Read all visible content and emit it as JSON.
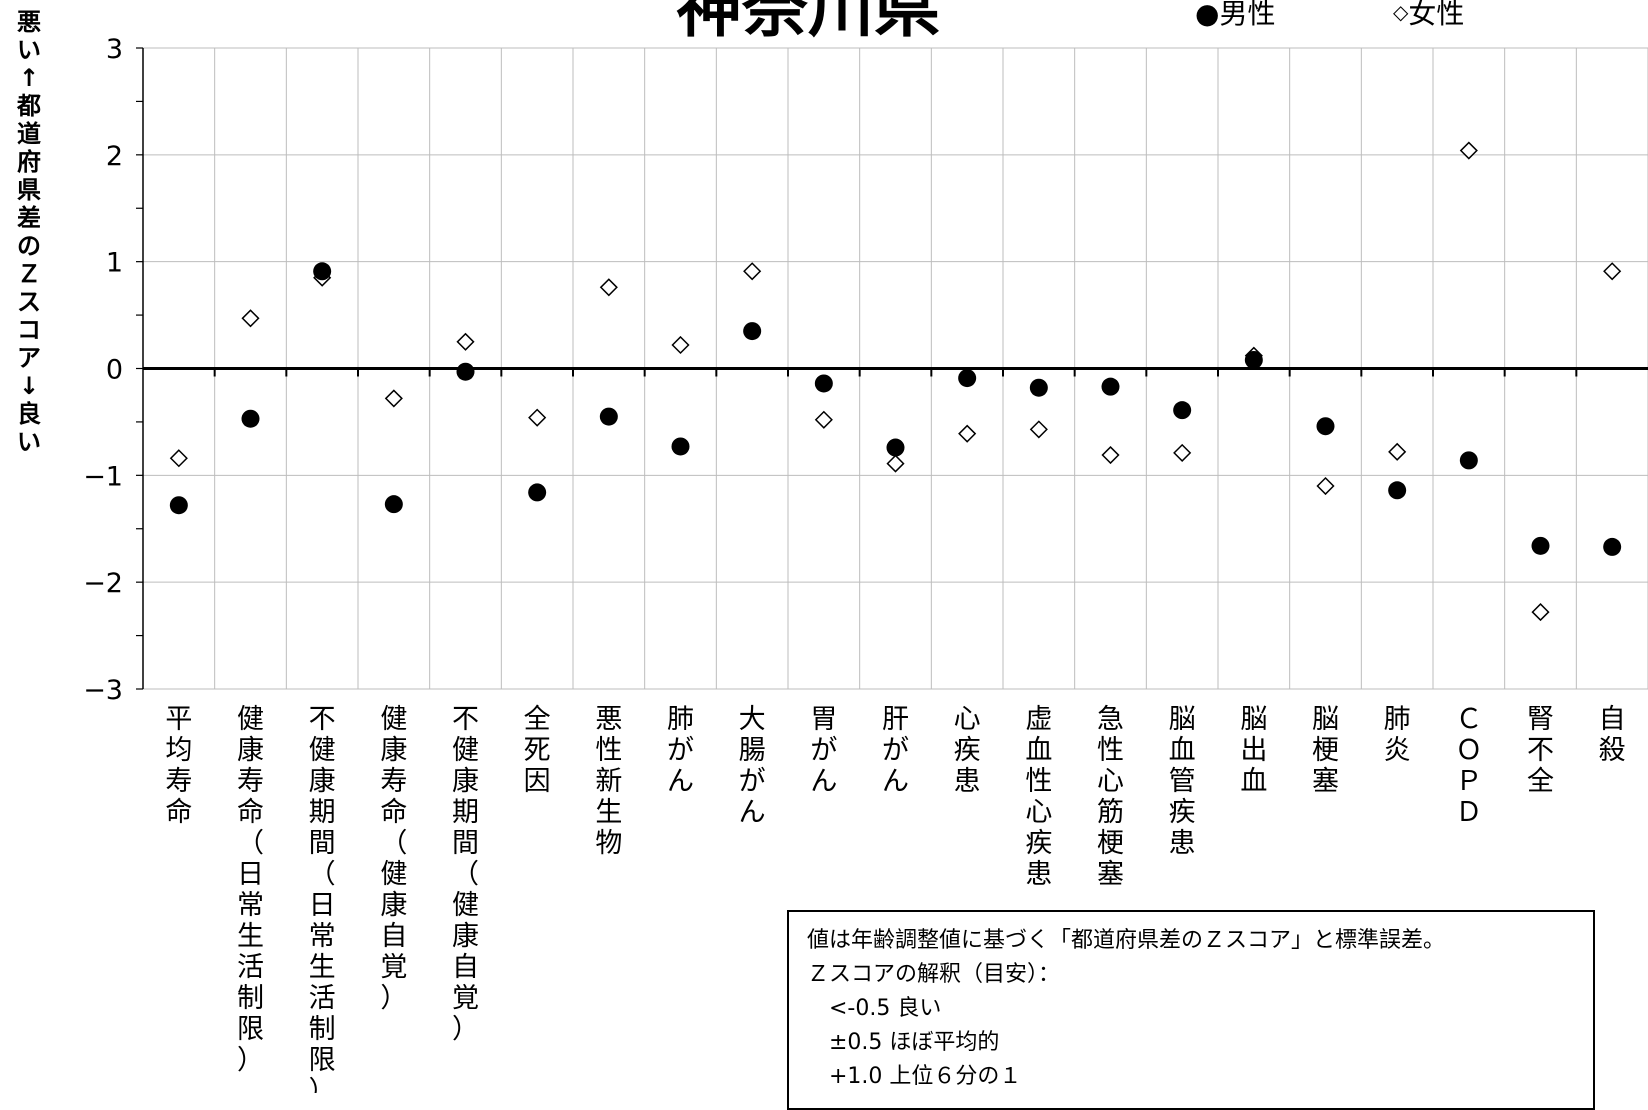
{
  "chart_data": {
    "type": "scatter",
    "title": "神奈川県",
    "ylabel": "悪い↑　都道府県差のＺスコア　↓良い",
    "ylim": [
      -3,
      3
    ],
    "yticks": [
      "3",
      "2",
      "1",
      "0",
      "−1",
      "−2",
      "−3"
    ],
    "grid": true,
    "legend_position": "top-right",
    "categories": [
      "平均寿命",
      "健康寿命（日常生活制限）",
      "不健康期間（日常生活制限）",
      "健康寿命（健康自覚）",
      "不健康期間（健康自覚）",
      "全死因",
      "悪性新生物",
      "肺がん",
      "大腸がん",
      "胃がん",
      "肝がん",
      "心疾患",
      "虚血性心疾患",
      "急性心筋梗塞",
      "脳血管疾患",
      "脳出血",
      "脳梗塞",
      "肺炎",
      "ＣＯＰＤ",
      "腎不全",
      "自殺"
    ],
    "series": [
      {
        "name": "男性",
        "marker": "filled-circle",
        "color": "#000000",
        "values": [
          -1.28,
          -0.47,
          0.91,
          -1.27,
          -0.03,
          -1.16,
          -0.45,
          -0.73,
          0.35,
          -0.14,
          -0.74,
          -0.09,
          -0.18,
          -0.17,
          -0.39,
          0.08,
          -0.54,
          -1.14,
          -0.86,
          -1.66,
          -1.67
        ]
      },
      {
        "name": "女性",
        "marker": "open-diamond",
        "color": "#000000",
        "values": [
          -0.84,
          0.47,
          0.85,
          -0.28,
          0.25,
          -0.46,
          0.76,
          0.22,
          0.91,
          -0.48,
          -0.89,
          -0.61,
          -0.57,
          -0.81,
          -0.79,
          0.12,
          -1.1,
          -0.78,
          2.04,
          -2.28,
          0.91
        ]
      }
    ],
    "annotation": {
      "lines": [
        "値は年齢調整値に基づく「都道府県差のＺスコア」と標準誤差。",
        "Ｚスコアの解釈（目安）：",
        "　<-0.5 良い",
        "　±0.5 ほぼ平均的",
        "　+1.0 上位６分の１"
      ]
    }
  }
}
